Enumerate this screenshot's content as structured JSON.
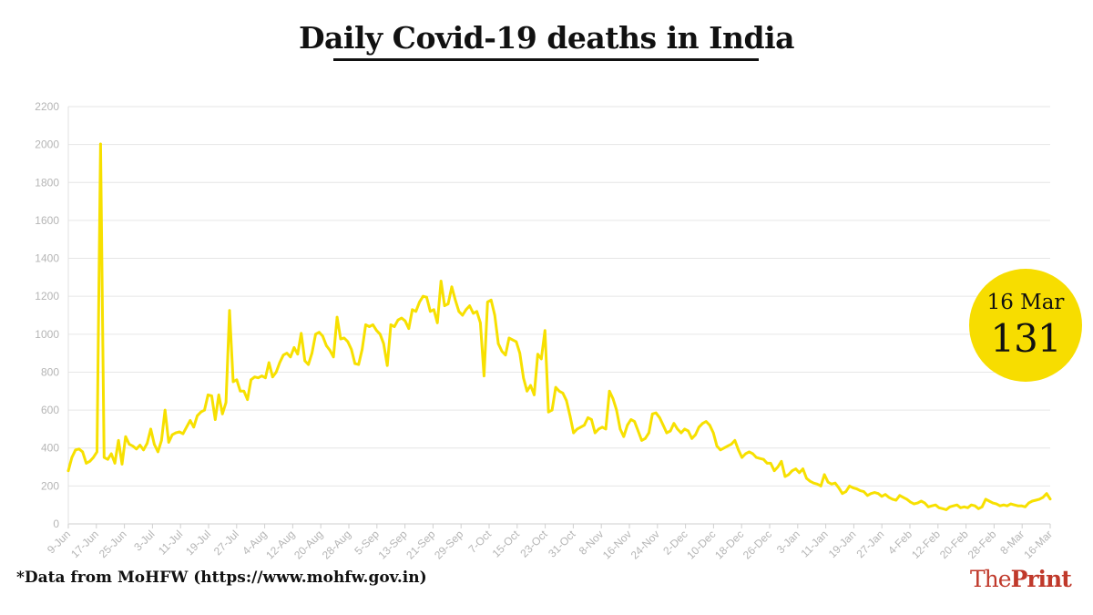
{
  "title": "Daily Covid-19 deaths in India",
  "source_note": "*Data from MoHFW (https://www.mohfw.gov.in)",
  "logo": {
    "light": "The",
    "bold": "Print"
  },
  "callout": {
    "date": "16 Mar",
    "value": "131"
  },
  "colors": {
    "line": "#f7e000",
    "callout": "#f7dd00",
    "grid": "#e6e6e6",
    "tick_text": "#b5b5b5",
    "brand": "#c0392b"
  },
  "chart_data": {
    "type": "line",
    "title": "Daily Covid-19 deaths in India",
    "xlabel": "",
    "ylabel": "",
    "ylim": [
      0,
      2200
    ],
    "yticks": [
      0,
      200,
      400,
      600,
      800,
      1000,
      1200,
      1400,
      1600,
      1800,
      2000,
      2200
    ],
    "grid": true,
    "x_start": "9-Jun",
    "x_end": "16-Mar",
    "xtick_labels": [
      "9-Jun",
      "17-Jun",
      "25-Jun",
      "3-Jul",
      "11-Jul",
      "19-Jul",
      "27-Jul",
      "4-Aug",
      "12-Aug",
      "20-Aug",
      "28-Aug",
      "5-Sep",
      "13-Sep",
      "21-Sep",
      "29-Sep",
      "7-Oct",
      "15-Oct",
      "23-Oct",
      "31-Oct",
      "8-Nov",
      "16-Nov",
      "24-Nov",
      "2-Dec",
      "10-Dec",
      "18-Dec",
      "26-Dec",
      "3-Jan",
      "11-Jan",
      "19-Jan",
      "27-Jan",
      "4-Feb",
      "12-Feb",
      "20-Feb",
      "28-Feb",
      "8-Mar",
      "16-Mar"
    ],
    "series": [
      {
        "values": [
          280,
          350,
          390,
          395,
          380,
          320,
          330,
          350,
          380,
          2003,
          350,
          340,
          370,
          320,
          440,
          315,
          460,
          420,
          410,
          395,
          415,
          390,
          425,
          500,
          420,
          380,
          440,
          600,
          430,
          470,
          480,
          485,
          475,
          510,
          545,
          510,
          570,
          590,
          600,
          680,
          675,
          550,
          680,
          580,
          640,
          1125,
          750,
          760,
          700,
          700,
          655,
          760,
          775,
          770,
          780,
          770,
          850,
          775,
          800,
          850,
          890,
          900,
          880,
          930,
          895,
          1005,
          860,
          840,
          900,
          1000,
          1010,
          990,
          940,
          915,
          880,
          1090,
          975,
          980,
          960,
          920,
          845,
          840,
          920,
          1050,
          1040,
          1050,
          1020,
          1000,
          950,
          835,
          1050,
          1040,
          1075,
          1085,
          1070,
          1030,
          1130,
          1120,
          1170,
          1200,
          1195,
          1120,
          1130,
          1060,
          1280,
          1150,
          1160,
          1250,
          1180,
          1120,
          1100,
          1130,
          1150,
          1110,
          1120,
          1060,
          780,
          1170,
          1180,
          1100,
          950,
          910,
          890,
          980,
          970,
          960,
          900,
          770,
          700,
          730,
          680,
          895,
          870,
          1020,
          590,
          600,
          720,
          700,
          690,
          650,
          570,
          480,
          500,
          510,
          520,
          560,
          550,
          480,
          500,
          510,
          500,
          700,
          660,
          600,
          500,
          460,
          520,
          550,
          540,
          490,
          440,
          450,
          480,
          580,
          585,
          560,
          520,
          480,
          490,
          530,
          500,
          480,
          500,
          490,
          450,
          470,
          510,
          530,
          540,
          520,
          480,
          410,
          390,
          400,
          410,
          420,
          440,
          390,
          350,
          370,
          380,
          370,
          350,
          345,
          340,
          320,
          320,
          280,
          300,
          330,
          250,
          260,
          280,
          290,
          270,
          290,
          240,
          225,
          215,
          210,
          200,
          260,
          220,
          210,
          215,
          190,
          160,
          170,
          200,
          190,
          185,
          175,
          170,
          150,
          160,
          165,
          160,
          145,
          155,
          140,
          130,
          125,
          150,
          140,
          130,
          115,
          105,
          110,
          120,
          110,
          90,
          95,
          100,
          85,
          80,
          75,
          90,
          95,
          100,
          85,
          90,
          85,
          100,
          95,
          80,
          90,
          130,
          120,
          110,
          105,
          95,
          100,
          95,
          105,
          100,
          95,
          95,
          90,
          110,
          120,
          125,
          130,
          140,
          160,
          131
        ]
      }
    ]
  }
}
